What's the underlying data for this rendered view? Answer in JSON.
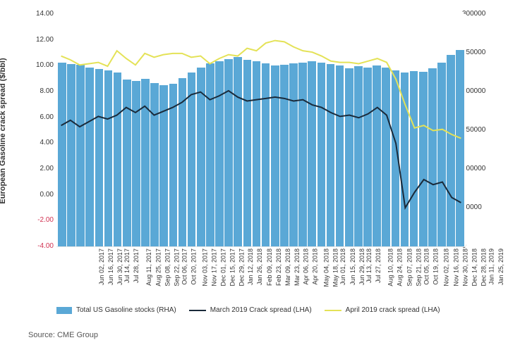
{
  "meta": {
    "source_label": "Source: CME Group",
    "y_axis_left_label": "European Gasoline crack spread ($/bbl)"
  },
  "chart": {
    "type": "combo-bar-line",
    "background_color": "#ffffff",
    "grid_color": "#e5e5e5",
    "bar_color": "#5aa8d6",
    "line_march_color": "#1a2a3a",
    "line_april_color": "#e4e257",
    "line_width": 2,
    "left_axis": {
      "min": -4.0,
      "max": 14.0,
      "step": 2.0
    },
    "right_axis": {
      "min": 0,
      "max": 300000,
      "step": 50000
    },
    "categories": [
      "Jun 02, 2017",
      "Jun 16, 2017",
      "Jun 30, 2017",
      "Jul 14, 2017",
      "Jul 28, 2017",
      "Aug 11, 2017",
      "Aug 25, 2017",
      "Sep 08, 2017",
      "Sep 22, 2017",
      "Oct 06, 2017",
      "Oct 20, 2017",
      "Nov 03, 2017",
      "Nov 17, 2017",
      "Dec 01, 2017",
      "Dec 15, 2017",
      "Dec 29, 2017",
      "Jan 12, 2018",
      "Jan 26, 2018",
      "Feb 09, 2018",
      "Feb 23, 2018",
      "Mar 09, 2018",
      "Mar 23, 2018",
      "Apr 06, 2018",
      "Apr 20, 2018",
      "May 04, 2018",
      "May 18, 2018",
      "Jun 01, 2018",
      "Jun 15, 2018",
      "Jun 29, 2018",
      "Jul 13, 2018",
      "Jul 27, 2018",
      "Aug 10, 2018",
      "Aug 24, 2018",
      "Sep 07, 2018",
      "Sep 21, 2018",
      "Oct 05, 2018",
      "Oct 19, 2018",
      "Nov 02, 2018",
      "Nov 16, 2018",
      "Nov 30, 2018",
      "Dec 14, 2018",
      "Dec 28, 2018",
      "Jan 11, 2019",
      "Jan 25, 2019"
    ],
    "bars_stocks": [
      238000,
      236000,
      235000,
      232000,
      230000,
      228000,
      225000,
      216000,
      214000,
      217000,
      212000,
      209000,
      211000,
      218000,
      225000,
      232000,
      237000,
      240000,
      243000,
      245000,
      242000,
      240000,
      237000,
      234000,
      235000,
      237000,
      238000,
      240000,
      238000,
      236000,
      234000,
      231000,
      233000,
      232000,
      234000,
      232000,
      228000,
      225000,
      227000,
      226000,
      231000,
      238000,
      248000,
      254000
    ],
    "line_march": [
      5.4,
      5.8,
      5.3,
      5.7,
      6.1,
      5.9,
      6.2,
      6.8,
      6.4,
      6.9,
      6.2,
      6.5,
      6.8,
      7.2,
      7.8,
      8.0,
      7.4,
      7.7,
      8.1,
      7.6,
      7.3,
      7.4,
      7.5,
      7.6,
      7.5,
      7.3,
      7.4,
      7.0,
      6.8,
      6.4,
      6.1,
      6.2,
      6.0,
      6.3,
      6.8,
      6.2,
      4.0,
      -1.0,
      0.2,
      1.2,
      0.8,
      1.0,
      -0.2,
      -0.6
    ],
    "line_april": [
      10.8,
      10.5,
      10.1,
      10.2,
      10.3,
      10.0,
      11.2,
      10.6,
      10.1,
      11.0,
      10.7,
      10.9,
      11.0,
      11.0,
      10.7,
      10.8,
      10.2,
      10.6,
      10.9,
      10.8,
      11.4,
      11.2,
      11.8,
      12.0,
      11.9,
      11.5,
      11.2,
      11.1,
      10.8,
      10.4,
      10.3,
      10.3,
      10.2,
      10.4,
      10.6,
      10.3,
      9.0,
      7.0,
      5.2,
      5.4,
      5.0,
      5.1,
      4.7,
      4.4
    ]
  },
  "legend": {
    "bars": "Total US Gasoline stocks (RHA)",
    "march": "March 2019 Crack spread (LHA)",
    "april": "April 2019 crack spread (LHA)"
  }
}
